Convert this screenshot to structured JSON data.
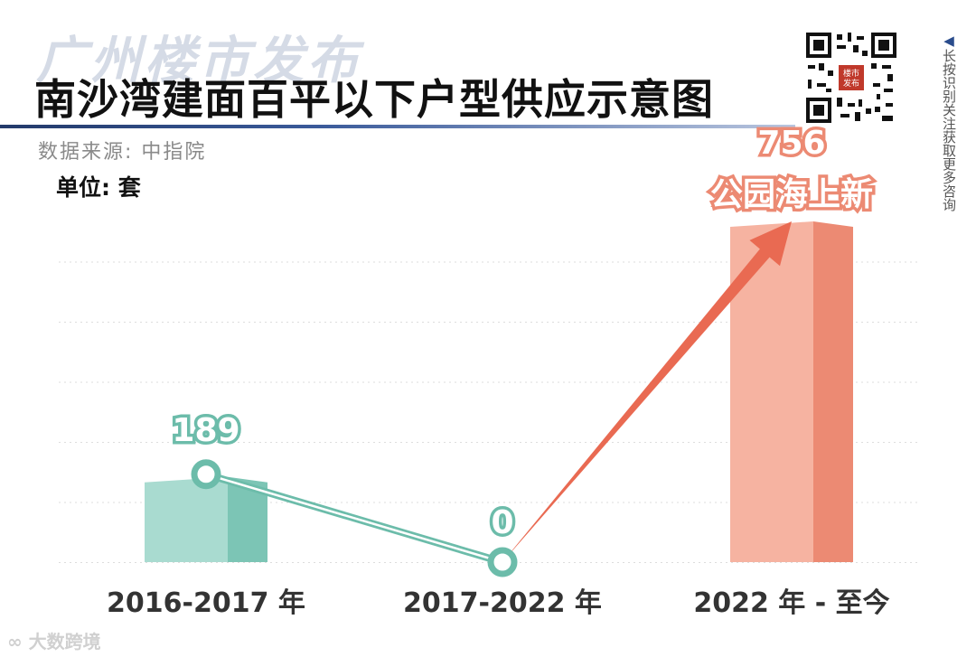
{
  "header": {
    "brand": "广州楼市发布",
    "title": "南沙湾建面百平以下户型供应示意图",
    "source": "数据来源: 中指院",
    "unit": "单位: 套"
  },
  "qr": {
    "note": "长按识别关注获取更多咨询",
    "center_text": "楼市发布"
  },
  "watermark": "大数跨境",
  "chart_data": {
    "type": "bar",
    "categories": [
      "2016-2017 年",
      "2017-2022 年",
      "2022 年 - 至今"
    ],
    "values": [
      189,
      0,
      756
    ],
    "annotations": [
      {
        "category": "2022 年 - 至今",
        "text": "公园海上新"
      }
    ],
    "ylim": [
      0,
      756
    ],
    "grid": true,
    "colors": {
      "teal_face": "#a9dbd0",
      "teal_side": "#7cc5b5",
      "teal_line": "#6cbcaa",
      "salmon_face": "#f6b3a1",
      "salmon_side": "#ec8a73",
      "arrow": "#e96a52",
      "grid": "#dddddd"
    }
  }
}
